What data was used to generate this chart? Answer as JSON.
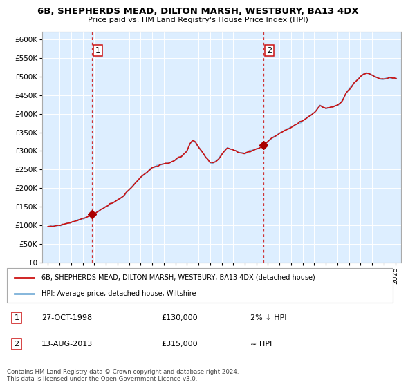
{
  "title": "6B, SHEPHERDS MEAD, DILTON MARSH, WESTBURY, BA13 4DX",
  "subtitle": "Price paid vs. HM Land Registry's House Price Index (HPI)",
  "legend_line1": "6B, SHEPHERDS MEAD, DILTON MARSH, WESTBURY, BA13 4DX (detached house)",
  "legend_line2": "HPI: Average price, detached house, Wiltshire",
  "annotation1": {
    "num": "1",
    "date": "27-OCT-1998",
    "price": "£130,000",
    "hpi": "2% ↓ HPI",
    "x_year": 1998.82,
    "y_val": 130000
  },
  "annotation2": {
    "num": "2",
    "date": "13-AUG-2013",
    "price": "£315,000",
    "hpi": "≈ HPI",
    "x_year": 2013.62,
    "y_val": 315000
  },
  "footnote": "Contains HM Land Registry data © Crown copyright and database right 2024.\nThis data is licensed under the Open Government Licence v3.0.",
  "bg_color": "#ddeeff",
  "line_color_hpi": "#7ab0d8",
  "line_color_price": "#cc1111",
  "marker_color": "#aa0000",
  "vline_color": "#cc1111",
  "ylim": [
    0,
    620000
  ],
  "yticks": [
    0,
    50000,
    100000,
    150000,
    200000,
    250000,
    300000,
    350000,
    400000,
    450000,
    500000,
    550000,
    600000
  ],
  "xlim": [
    1994.5,
    2025.5
  ],
  "hpi_anchors_t": [
    1995.0,
    1995.5,
    1996.0,
    1996.5,
    1997.0,
    1997.5,
    1998.0,
    1998.5,
    1999.0,
    1999.5,
    2000.0,
    2000.5,
    2001.0,
    2001.5,
    2002.0,
    2002.5,
    2003.0,
    2003.5,
    2004.0,
    2004.5,
    2005.0,
    2005.5,
    2006.0,
    2006.5,
    2007.0,
    2007.25,
    2007.5,
    2007.75,
    2008.0,
    2008.25,
    2008.5,
    2008.75,
    2009.0,
    2009.25,
    2009.5,
    2009.75,
    2010.0,
    2010.25,
    2010.5,
    2010.75,
    2011.0,
    2011.25,
    2011.5,
    2011.75,
    2012.0,
    2012.25,
    2012.5,
    2012.75,
    2013.0,
    2013.25,
    2013.5,
    2013.75,
    2014.0,
    2014.5,
    2015.0,
    2015.5,
    2016.0,
    2016.5,
    2017.0,
    2017.5,
    2018.0,
    2018.25,
    2018.5,
    2018.75,
    2019.0,
    2019.25,
    2019.5,
    2019.75,
    2020.0,
    2020.25,
    2020.5,
    2020.75,
    2021.0,
    2021.25,
    2021.5,
    2021.75,
    2022.0,
    2022.25,
    2022.5,
    2022.75,
    2023.0,
    2023.25,
    2023.5,
    2023.75,
    2024.0,
    2024.25,
    2024.5,
    2024.75,
    2025.0
  ],
  "hpi_anchors_v": [
    96000,
    97500,
    100000,
    104000,
    108000,
    113000,
    118000,
    124000,
    132000,
    140000,
    150000,
    158000,
    167000,
    178000,
    195000,
    212000,
    228000,
    242000,
    255000,
    260000,
    265000,
    268000,
    276000,
    285000,
    300000,
    318000,
    328000,
    322000,
    310000,
    300000,
    288000,
    278000,
    268000,
    268000,
    272000,
    278000,
    290000,
    300000,
    308000,
    306000,
    303000,
    300000,
    296000,
    294000,
    293000,
    296000,
    299000,
    302000,
    305000,
    308000,
    312000,
    318000,
    326000,
    337000,
    348000,
    356000,
    364000,
    372000,
    382000,
    392000,
    403000,
    413000,
    422000,
    418000,
    414000,
    416000,
    418000,
    420000,
    422000,
    428000,
    440000,
    455000,
    465000,
    475000,
    485000,
    492000,
    500000,
    506000,
    510000,
    508000,
    504000,
    500000,
    497000,
    494000,
    494000,
    495000,
    497000,
    496000,
    494000
  ],
  "grid_color": "#cccccc",
  "grid_color_chart": "#ffffff"
}
